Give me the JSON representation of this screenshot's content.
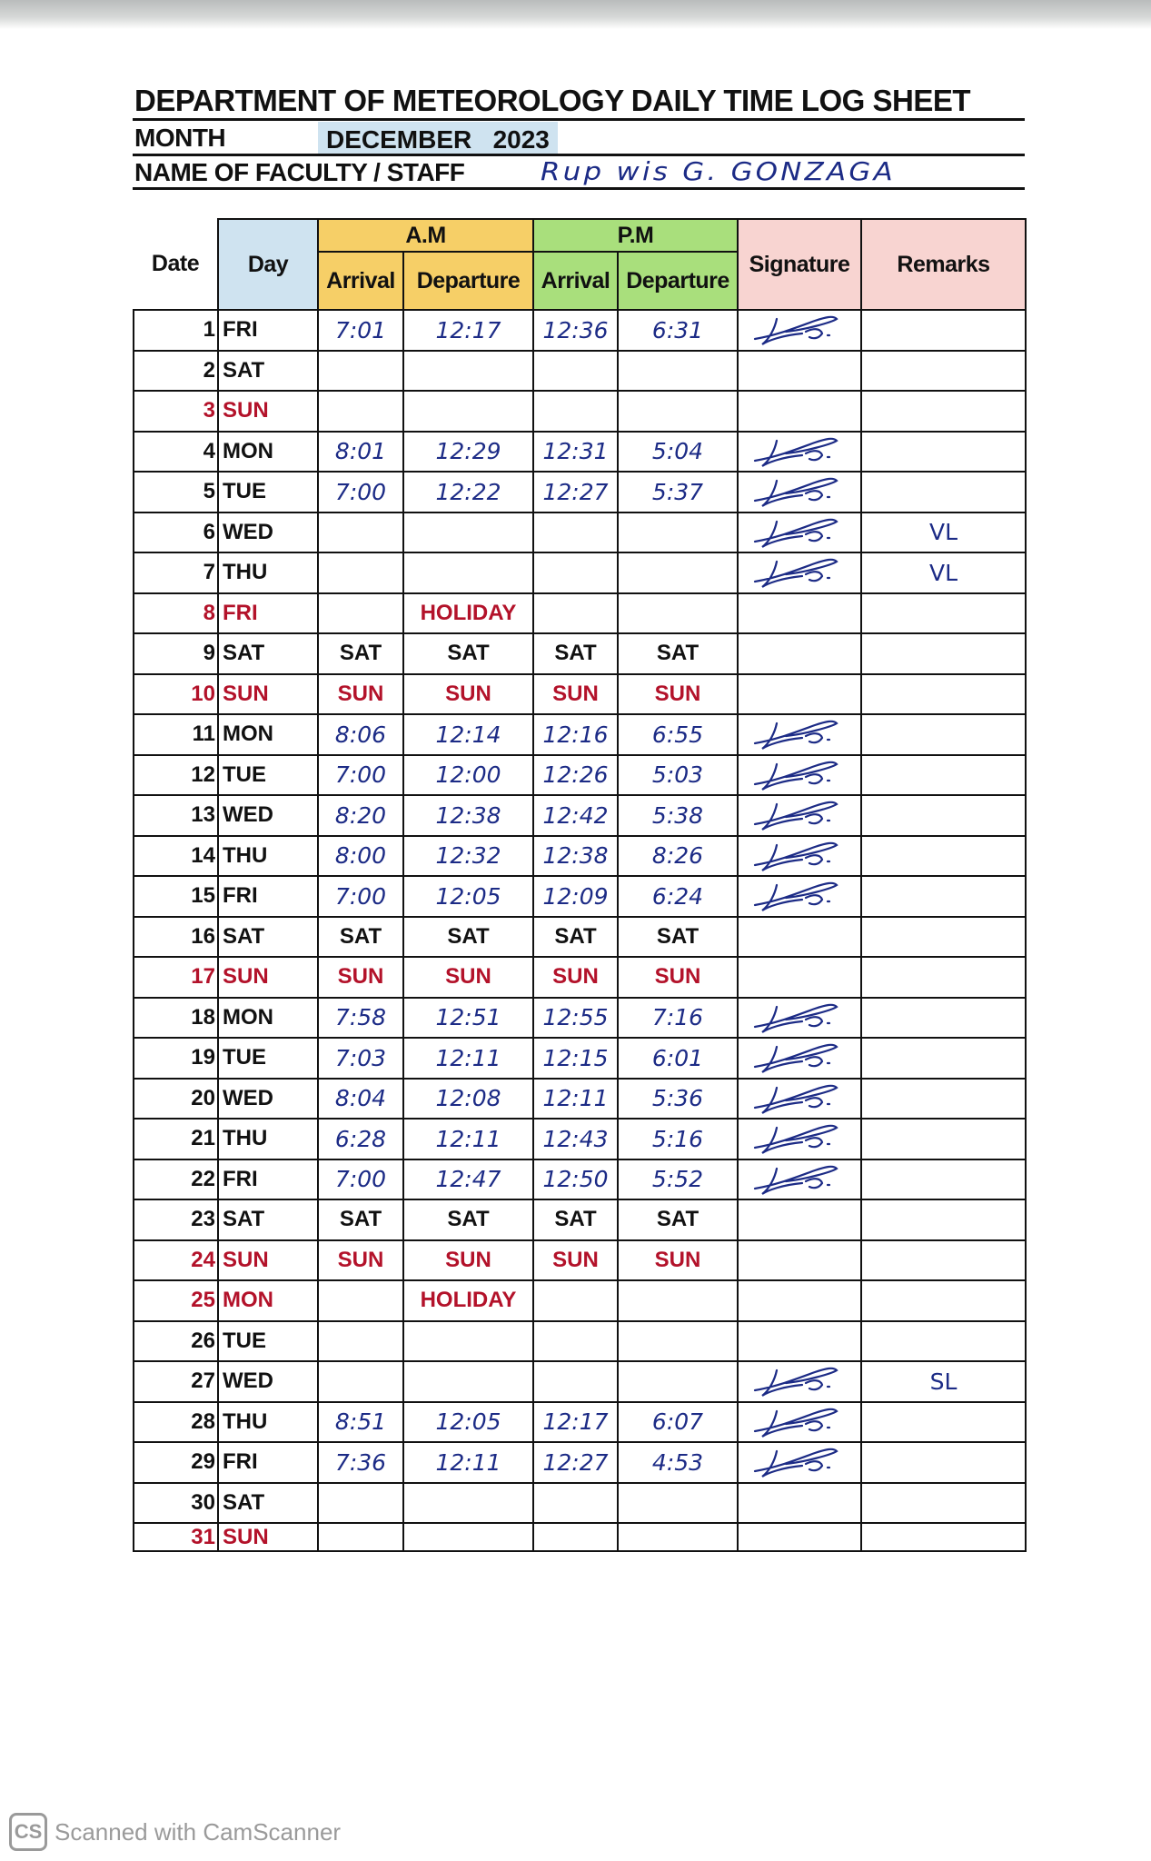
{
  "header": {
    "title": "DEPARTMENT OF METEOROLOGY DAILY TIME LOG SHEET",
    "month_label": "MONTH",
    "month_value": "DECEMBER   2023",
    "name_label": "NAME OF FACULTY / STAFF",
    "name_value": "Rup wis G. GONZAGA"
  },
  "table": {
    "columns": {
      "date": "Date",
      "day": "Day",
      "am": "A.M",
      "pm": "P.M",
      "arrival": "Arrival",
      "departure": "Departure",
      "signature": "Signature",
      "remarks": "Remarks"
    },
    "rows": [
      {
        "date": "1",
        "day": "FRI",
        "am_in": "7:01",
        "am_out": "12:17",
        "pm_in": "12:36",
        "pm_out": "6:31",
        "signed": true,
        "remarks": ""
      },
      {
        "date": "2",
        "day": "SAT",
        "am_in": "",
        "am_out": "",
        "pm_in": "",
        "pm_out": "",
        "signed": false,
        "remarks": ""
      },
      {
        "date": "3",
        "day": "SUN",
        "red": true,
        "am_in": "",
        "am_out": "",
        "pm_in": "",
        "pm_out": "",
        "signed": false,
        "remarks": ""
      },
      {
        "date": "4",
        "day": "MON",
        "am_in": "8:01",
        "am_out": "12:29",
        "pm_in": "12:31",
        "pm_out": "5:04",
        "signed": true,
        "remarks": ""
      },
      {
        "date": "5",
        "day": "TUE",
        "am_in": "7:00",
        "am_out": "12:22",
        "pm_in": "12:27",
        "pm_out": "5:37",
        "signed": true,
        "remarks": ""
      },
      {
        "date": "6",
        "day": "WED",
        "am_in": "",
        "am_out": "",
        "pm_in": "",
        "pm_out": "",
        "signed": true,
        "remarks": "VL"
      },
      {
        "date": "7",
        "day": "THU",
        "am_in": "",
        "am_out": "",
        "pm_in": "",
        "pm_out": "",
        "signed": true,
        "remarks": "VL"
      },
      {
        "date": "8",
        "day": "FRI",
        "red": true,
        "holiday": "HOLIDAY",
        "signed": false,
        "remarks": ""
      },
      {
        "date": "9",
        "day": "SAT",
        "am_in": "SAT",
        "am_out": "SAT",
        "pm_in": "SAT",
        "pm_out": "SAT",
        "printed": true,
        "signed": false,
        "remarks": ""
      },
      {
        "date": "10",
        "day": "SUN",
        "red": true,
        "am_in": "SUN",
        "am_out": "SUN",
        "pm_in": "SUN",
        "pm_out": "SUN",
        "printed": true,
        "signed": false,
        "remarks": ""
      },
      {
        "date": "11",
        "day": "MON",
        "am_in": "8:06",
        "am_out": "12:14",
        "pm_in": "12:16",
        "pm_out": "6:55",
        "signed": true,
        "remarks": ""
      },
      {
        "date": "12",
        "day": "TUE",
        "am_in": "7:00",
        "am_out": "12:00",
        "pm_in": "12:26",
        "pm_out": "5:03",
        "signed": true,
        "remarks": ""
      },
      {
        "date": "13",
        "day": "WED",
        "am_in": "8:20",
        "am_out": "12:38",
        "pm_in": "12:42",
        "pm_out": "5:38",
        "signed": true,
        "remarks": ""
      },
      {
        "date": "14",
        "day": "THU",
        "am_in": "8:00",
        "am_out": "12:32",
        "pm_in": "12:38",
        "pm_out": "8:26",
        "signed": true,
        "remarks": ""
      },
      {
        "date": "15",
        "day": "FRI",
        "am_in": "7:00",
        "am_out": "12:05",
        "pm_in": "12:09",
        "pm_out": "6:24",
        "signed": true,
        "remarks": ""
      },
      {
        "date": "16",
        "day": "SAT",
        "am_in": "SAT",
        "am_out": "SAT",
        "pm_in": "SAT",
        "pm_out": "SAT",
        "printed": true,
        "signed": false,
        "remarks": ""
      },
      {
        "date": "17",
        "day": "SUN",
        "red": true,
        "am_in": "SUN",
        "am_out": "SUN",
        "pm_in": "SUN",
        "pm_out": "SUN",
        "printed": true,
        "signed": false,
        "remarks": ""
      },
      {
        "date": "18",
        "day": "MON",
        "am_in": "7:58",
        "am_out": "12:51",
        "pm_in": "12:55",
        "pm_out": "7:16",
        "signed": true,
        "remarks": ""
      },
      {
        "date": "19",
        "day": "TUE",
        "am_in": "7:03",
        "am_out": "12:11",
        "pm_in": "12:15",
        "pm_out": "6:01",
        "signed": true,
        "remarks": ""
      },
      {
        "date": "20",
        "day": "WED",
        "am_in": "8:04",
        "am_out": "12:08",
        "pm_in": "12:11",
        "pm_out": "5:36",
        "signed": true,
        "remarks": ""
      },
      {
        "date": "21",
        "day": "THU",
        "am_in": "6:28",
        "am_out": "12:11",
        "pm_in": "12:43",
        "pm_out": "5:16",
        "signed": true,
        "remarks": ""
      },
      {
        "date": "22",
        "day": "FRI",
        "am_in": "7:00",
        "am_out": "12:47",
        "pm_in": "12:50",
        "pm_out": "5:52",
        "signed": true,
        "remarks": ""
      },
      {
        "date": "23",
        "day": "SAT",
        "am_in": "SAT",
        "am_out": "SAT",
        "pm_in": "SAT",
        "pm_out": "SAT",
        "printed": true,
        "signed": false,
        "remarks": ""
      },
      {
        "date": "24",
        "day": "SUN",
        "red": true,
        "am_in": "SUN",
        "am_out": "SUN",
        "pm_in": "SUN",
        "pm_out": "SUN",
        "printed": true,
        "signed": false,
        "remarks": ""
      },
      {
        "date": "25",
        "day": "MON",
        "red": true,
        "holiday": "HOLIDAY",
        "signed": false,
        "remarks": ""
      },
      {
        "date": "26",
        "day": "TUE",
        "am_in": "",
        "am_out": "",
        "pm_in": "",
        "pm_out": "",
        "signed": false,
        "remarks": ""
      },
      {
        "date": "27",
        "day": "WED",
        "am_in": "",
        "am_out": "",
        "pm_in": "",
        "pm_out": "",
        "signed": true,
        "remarks": "SL"
      },
      {
        "date": "28",
        "day": "THU",
        "am_in": "8:51",
        "am_out": "12:05",
        "pm_in": "12:17",
        "pm_out": "6:07",
        "signed": true,
        "remarks": ""
      },
      {
        "date": "29",
        "day": "FRI",
        "am_in": "7:36",
        "am_out": "12:11",
        "pm_in": "12:27",
        "pm_out": "4:53",
        "signed": true,
        "remarks": ""
      },
      {
        "date": "30",
        "day": "SAT",
        "am_in": "",
        "am_out": "",
        "pm_in": "",
        "pm_out": "",
        "signed": false,
        "remarks": ""
      },
      {
        "date": "31",
        "day": "SUN",
        "red": true,
        "am_in": "",
        "am_out": "",
        "pm_in": "",
        "pm_out": "",
        "signed": false,
        "remarks": ""
      }
    ]
  },
  "colors": {
    "day_header": "#cfe3f0",
    "am_header": "#f6cf67",
    "pm_header": "#a9df7c",
    "sig_header": "#f8d4d1",
    "ink": "#1c2b86",
    "weekend_red": "#b3122a"
  },
  "footer": {
    "logo": "CS",
    "text": "Scanned with CamScanner"
  }
}
